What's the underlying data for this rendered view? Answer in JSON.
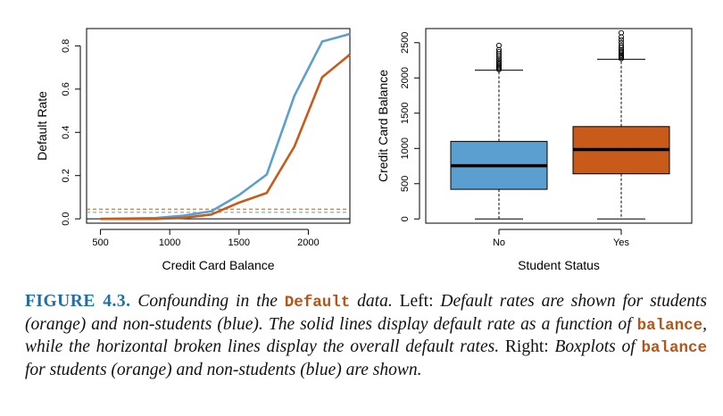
{
  "chart_data": [
    {
      "type": "line",
      "xlabel": "Credit Card Balance",
      "ylabel": "Default Rate",
      "xlim": [
        400,
        2300
      ],
      "ylim": [
        -0.02,
        0.88
      ],
      "x_ticks": [
        500,
        1000,
        1500,
        2000
      ],
      "y_ticks": [
        0.0,
        0.2,
        0.4,
        0.6,
        0.8
      ],
      "y_tick_labels": [
        "0.0",
        "0.2",
        "0.4",
        "0.6",
        "0.8"
      ],
      "series": [
        {
          "color": "#5b9fd0",
          "x": [
            500,
            700,
            900,
            1100,
            1300,
            1500,
            1700,
            1900,
            2100,
            2300
          ],
          "y": [
            0.0,
            0.002,
            0.004,
            0.015,
            0.035,
            0.11,
            0.205,
            0.57,
            0.82,
            0.855
          ]
        },
        {
          "color": "#c85a1a",
          "x": [
            500,
            700,
            900,
            1100,
            1300,
            1500,
            1700,
            1900,
            2100,
            2300
          ],
          "y": [
            0.0,
            0.0,
            0.0,
            0.005,
            0.02,
            0.075,
            0.12,
            0.335,
            0.655,
            0.76
          ]
        }
      ],
      "reference_lines": [
        {
          "color": "#c85a1a",
          "style": "dashed",
          "y": 0.045
        },
        {
          "color": "#5b9fd0",
          "style": "dashed",
          "y": 0.03
        },
        {
          "color": "#000000",
          "style": "solid",
          "y": 0.0
        }
      ],
      "grid": false
    },
    {
      "type": "box",
      "xlabel": "Student Status",
      "ylabel": "Credit Card Balance",
      "categories": [
        "No",
        "Yes"
      ],
      "ylim": [
        -60,
        2700
      ],
      "y_ticks": [
        0,
        500,
        1000,
        1500,
        2000,
        2500
      ],
      "boxes": [
        {
          "category": "No",
          "color": "#5b9fd0",
          "whisker_low": 0,
          "q1": 420,
          "median": 755,
          "q3": 1100,
          "whisker_high": 2110,
          "outliers": [
            2120,
            2135,
            2150,
            2165,
            2185,
            2205,
            2230,
            2255,
            2280,
            2310,
            2340,
            2370,
            2400,
            2460
          ]
        },
        {
          "category": "Yes",
          "color": "#c85a1a",
          "whisker_low": 0,
          "q1": 640,
          "median": 985,
          "q3": 1310,
          "whisker_high": 2265,
          "outliers": [
            2275,
            2290,
            2305,
            2320,
            2340,
            2360,
            2380,
            2400,
            2430,
            2460,
            2500,
            2540,
            2580,
            2640
          ]
        }
      ],
      "grid": false
    }
  ],
  "caption": {
    "label": "FIGURE 4.3.",
    "parts": [
      {
        "t": "em",
        "v": " Confounding in the "
      },
      {
        "t": "code",
        "v": "Default"
      },
      {
        "t": "em",
        "v": " data."
      },
      {
        "t": "text",
        "v": " Left: "
      },
      {
        "t": "em",
        "v": "Default rates are shown for students (orange) and non-students (blue). The solid lines display default rate as a function of "
      },
      {
        "t": "code",
        "v": "balance"
      },
      {
        "t": "em",
        "v": ", while the horizontal broken lines display the overall default rates."
      },
      {
        "t": "text",
        "v": " Right: "
      },
      {
        "t": "em",
        "v": "Boxplots of "
      },
      {
        "t": "code",
        "v": "balance"
      },
      {
        "t": "em",
        "v": " for students (orange) and non-students (blue) are shown."
      }
    ]
  }
}
